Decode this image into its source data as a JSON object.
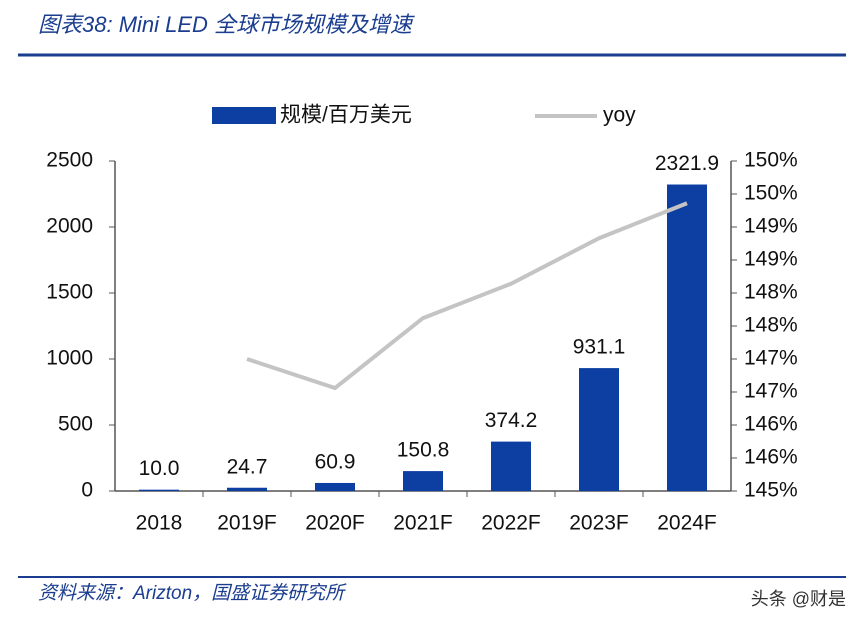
{
  "header": {
    "title": "图表38: Mini LED 全球市场规模及增速"
  },
  "chart_data": {
    "type": "bar",
    "categories": [
      "2018",
      "2019F",
      "2020F",
      "2021F",
      "2022F",
      "2023F",
      "2024F"
    ],
    "series": [
      {
        "name": "规模/百万美元",
        "type": "bar",
        "color": "#0d3fa3",
        "axis": "y",
        "values": [
          10,
          24.7,
          60.9,
          150.8,
          374.2,
          931.1,
          2321.9
        ],
        "value_labels": [
          "10.0",
          "24.7",
          "60.9",
          "150.8",
          "374.2",
          "931.1",
          "2321.9"
        ]
      },
      {
        "name": "yoy",
        "type": "line",
        "color": "#c4c4c4",
        "axis": "y2",
        "values": [
          null,
          147.0,
          146.56,
          147.62,
          148.14,
          148.83,
          149.36
        ]
      }
    ],
    "ylim": [
      0,
      2500
    ],
    "yticks": [
      0,
      500,
      1000,
      1500,
      2000,
      2500
    ],
    "y2lim": [
      145,
      150
    ],
    "y2ticks": [
      {
        "value": 145,
        "label": "145%"
      },
      {
        "value": 145.5,
        "label": "146%"
      },
      {
        "value": 146,
        "label": "146%"
      },
      {
        "value": 146.5,
        "label": "147%"
      },
      {
        "value": 147,
        "label": "147%"
      },
      {
        "value": 147.5,
        "label": "148%"
      },
      {
        "value": 148,
        "label": "148%"
      },
      {
        "value": 148.5,
        "label": "149%"
      },
      {
        "value": 149,
        "label": "149%"
      },
      {
        "value": 149.5,
        "label": "150%"
      },
      {
        "value": 150,
        "label": "150%"
      }
    ],
    "grid": false
  },
  "footer": {
    "source": "资料来源：Arizton，国盛证券研究所",
    "watermark": "头条 @财是"
  }
}
